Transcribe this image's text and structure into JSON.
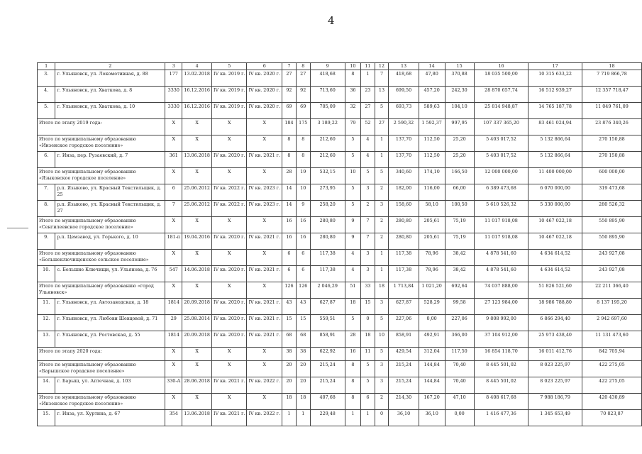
{
  "page_number": "4",
  "table": {
    "header": [
      "1",
      "2",
      "3",
      "4",
      "5",
      "6",
      "7",
      "8",
      "9",
      "10",
      "11",
      "12",
      "13",
      "14",
      "15",
      "16",
      "17",
      "18"
    ],
    "rows": [
      {
        "type": "item",
        "cells": [
          "3.",
          "г. Ульяновск, ул. Локомотивная, д. 88",
          "177",
          "13.02.2018",
          "IV кв. 2019 г.",
          "IV кв. 2020 г.",
          "27",
          "27",
          "418,68",
          "8",
          "1",
          "7",
          "418,68",
          "47,80",
          "370,88",
          "18 035 500,00",
          "10 315 633,22",
          "7 719 866,78"
        ]
      },
      {
        "type": "item",
        "cells": [
          "4.",
          "г. Ульяновск, ул. Хваткова, д. 8",
          "3330",
          "16.12.2016",
          "IV кв. 2019 г.",
          "IV кв. 2020 г.",
          "92",
          "92",
          "713,60",
          "36",
          "23",
          "13",
          "699,50",
          "457,20",
          "242,30",
          "28 870 657,74",
          "16 512 939,27",
          "12 357 718,47"
        ]
      },
      {
        "type": "item",
        "cells": [
          "5.",
          "г. Ульяновск, ул. Хваткова, д. 10",
          "3330",
          "16.12.2016",
          "IV кв. 2019 г.",
          "IV кв. 2020 г.",
          "69",
          "69",
          "705,09",
          "32",
          "27",
          "5",
          "693,73",
          "589,63",
          "104,10",
          "25 814 948,87",
          "14 765 187,78",
          "11 049 761,09"
        ]
      },
      {
        "type": "total",
        "cells": [
          "Итого по этапу 2019 года:",
          "X",
          "X",
          "X",
          "X",
          "184",
          "175",
          "3 189,22",
          "79",
          "52",
          "27",
          "2 590,32",
          "1 592,37",
          "997,95",
          "107 337 365,20",
          "83 461 024,94",
          "23 876 340,26"
        ]
      },
      {
        "type": "total",
        "cells": [
          "Итого по муниципальному образованию «Инзенское городское поселение»",
          "X",
          "X",
          "X",
          "X",
          "8",
          "8",
          "212,60",
          "5",
          "4",
          "1",
          "137,70",
          "112,50",
          "25,20",
          "5 403 017,52",
          "5 132 866,64",
          "270 150,88"
        ]
      },
      {
        "type": "item",
        "cells": [
          "6.",
          "г. Инза, пер. Рузаевский, д. 7",
          "361",
          "13.06.2018",
          "IV кв. 2020 г.",
          "IV кв. 2021 г.",
          "8",
          "8",
          "212,60",
          "5",
          "4",
          "1",
          "137,70",
          "112,50",
          "25,20",
          "5 403 017,52",
          "5 132 866,64",
          "270 150,88"
        ]
      },
      {
        "type": "total",
        "cells": [
          "Итого по муниципальному образованию «Языковское городское поселение»",
          "X",
          "X",
          "X",
          "X",
          "28",
          "19",
          "532,15",
          "10",
          "5",
          "5",
          "340,60",
          "174,10",
          "166,50",
          "12 000 000,00",
          "11 400 000,00",
          "600 000,00"
        ]
      },
      {
        "type": "item",
        "cells": [
          "7.",
          "р.п. Языково, ул. Красный Текстильщик, д. 25",
          "6",
          "25.06.2012",
          "IV кв. 2022 г.",
          "IV кв. 2023 г.",
          "14",
          "10",
          "273,95",
          "5",
          "3",
          "2",
          "182,00",
          "116,00",
          "66,00",
          "6 389 473,68",
          "6 070 000,00",
          "319 473,68"
        ]
      },
      {
        "type": "item",
        "cells": [
          "8.",
          "р.п. Языково, ул. Красный Текстильщик, д. 27",
          "7",
          "25.06.2012",
          "IV кв. 2022 г.",
          "IV кв. 2023 г.",
          "14",
          "9",
          "258,20",
          "5",
          "2",
          "3",
          "158,60",
          "58,10",
          "100,50",
          "5 610 526,32",
          "5 330 000,00",
          "280 526,32"
        ]
      },
      {
        "type": "total",
        "cells": [
          "Итого по муниципальному образованию «Сенгилеевское городское поселение»",
          "X",
          "X",
          "X",
          "X",
          "16",
          "16",
          "280,80",
          "9",
          "7",
          "2",
          "280,80",
          "205,61",
          "75,19",
          "11 017 918,08",
          "10 467 022,18",
          "550 895,90"
        ]
      },
      {
        "type": "item",
        "cells": [
          "9.",
          "р.п. Цемзавод, ул. Горького, д. 10",
          "181-п",
          "19.04.2016",
          "IV кв. 2020 г.",
          "IV кв. 2021 г.",
          "16",
          "16",
          "280,80",
          "9",
          "7",
          "2",
          "280,80",
          "205,61",
          "75,19",
          "11 017 918,08",
          "10 467 022,18",
          "550 895,90"
        ]
      },
      {
        "type": "total",
        "cells": [
          "Итого по муниципальному образованию «Большеключищенское сельское поселение»",
          "X",
          "X",
          "X",
          "X",
          "6",
          "6",
          "117,38",
          "4",
          "3",
          "1",
          "117,38",
          "78,96",
          "38,42",
          "4 878 541,60",
          "4 634 614,52",
          "243 927,08"
        ]
      },
      {
        "type": "item",
        "cells": [
          "10.",
          "с. Большие Ключищи, ул. Ульянова, д. 76",
          "547",
          "14.06.2018",
          "IV кв. 2020 г.",
          "IV кв. 2021 г.",
          "6",
          "6",
          "117,38",
          "4",
          "3",
          "1",
          "117,38",
          "78,96",
          "38,42",
          "4 878 541,60",
          "4 634 614,52",
          "243 927,08"
        ]
      },
      {
        "type": "total",
        "cells": [
          "Итого по муниципальному образованию «город Ульяновск»",
          "X",
          "X",
          "X",
          "X",
          "126",
          "126",
          "2 046,29",
          "51",
          "33",
          "18",
          "1 713,84",
          "1 021,20",
          "692,64",
          "74 037 888,00",
          "51 826 521,60",
          "22 211 366,40"
        ]
      },
      {
        "type": "item",
        "cells": [
          "11.",
          "г. Ульяновск, ул. Автозаводская, д. 18",
          "1814",
          "20.09.2018",
          "IV кв. 2020 г.",
          "IV кв. 2021 г.",
          "43",
          "43",
          "627,87",
          "18",
          "15",
          "3",
          "627,87",
          "528,29",
          "99,58",
          "27 123 984,00",
          "18 986 788,80",
          "8 137 195,20"
        ]
      },
      {
        "type": "item",
        "cells": [
          "12.",
          "г. Ульяновск, ул. Любови Шевцовой, д. 71",
          "29",
          "25.08.2014",
          "IV кв. 2020 г.",
          "IV кв. 2021 г.",
          "15",
          "15",
          "559,51",
          "5",
          "0",
          "5",
          "227,06",
          "0,00",
          "227,06",
          "9 808 992,00",
          "6 866 294,40",
          "2 942 697,60"
        ]
      },
      {
        "type": "item",
        "cells": [
          "13.",
          "г. Ульяновск, ул. Ростовская, д. 55",
          "1814",
          "20.09.2018",
          "IV кв. 2020 г.",
          "IV кв. 2021 г.",
          "68",
          "68",
          "858,91",
          "28",
          "18",
          "10",
          "858,91",
          "492,91",
          "366,00",
          "37 104 912,00",
          "25 973 438,40",
          "11 131 473,60"
        ]
      },
      {
        "type": "total",
        "short": true,
        "cells": [
          "Итого по этапу 2020 года:",
          "X",
          "X",
          "X",
          "X",
          "38",
          "38",
          "622,92",
          "16",
          "11",
          "5",
          "429,54",
          "312,04",
          "117,50",
          "16 854 118,70",
          "16 011 412,76",
          "842 705,94"
        ]
      },
      {
        "type": "total",
        "cells": [
          "Итого по муниципальному образованию «Барышское городское поселение»",
          "X",
          "X",
          "X",
          "X",
          "20",
          "20",
          "215,24",
          "8",
          "5",
          "3",
          "215,24",
          "144,84",
          "70,40",
          "8 445 501,02",
          "8 023 225,97",
          "422 275,05"
        ]
      },
      {
        "type": "item",
        "cells": [
          "14.",
          "г. Барыш, ул. Аптечная, д. 103",
          "330-А",
          "28.06.2018",
          "IV кв. 2021 г.",
          "IV кв. 2022 г.",
          "20",
          "20",
          "215,24",
          "8",
          "5",
          "3",
          "215,24",
          "144,84",
          "70,40",
          "8 445 501,02",
          "8 023 225,97",
          "422 275,05"
        ]
      },
      {
        "type": "total",
        "cells": [
          "Итого по муниципальному образованию «Инзенское городское поселение»",
          "X",
          "X",
          "X",
          "X",
          "18",
          "18",
          "407,68",
          "8",
          "6",
          "2",
          "214,30",
          "167,20",
          "47,10",
          "8 408 617,68",
          "7 988 186,79",
          "420 430,89"
        ]
      },
      {
        "type": "item",
        "cells": [
          "15.",
          "г. Инза, ул. Хуртина, д. 67",
          "354",
          "13.06.2018",
          "IV кв. 2021 г.",
          "IV кв. 2022 г.",
          "1",
          "1",
          "229,48",
          "1",
          "1",
          "0",
          "36,10",
          "36,10",
          "0,00",
          "1 416 477,36",
          "1 345 653,49",
          "70 823,87"
        ]
      }
    ]
  }
}
